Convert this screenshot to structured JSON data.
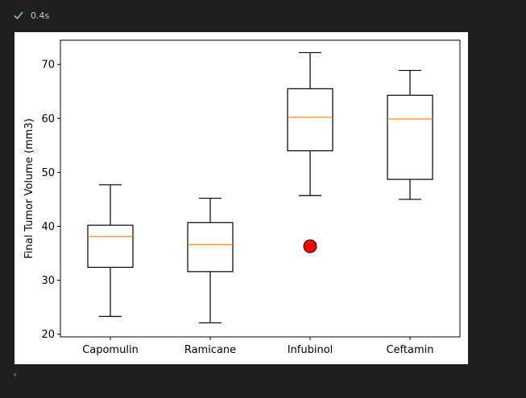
{
  "cell": {
    "status_text": "0.4s",
    "status_icon": "check-icon",
    "status_color": "#89d185"
  },
  "chart_data": {
    "type": "boxplot",
    "categories": [
      "Capomulin",
      "Ramicane",
      "Infubinol",
      "Ceftamin"
    ],
    "ylabel": "Final Tumor Volume (mm3)",
    "xlabel": "",
    "title": "",
    "ylim": [
      19.5,
      74.5
    ],
    "yticks": [
      20,
      30,
      40,
      50,
      60,
      70
    ],
    "boxes": [
      {
        "whisker_low": 23.3,
        "q1": 32.4,
        "median": 38.1,
        "q3": 40.2,
        "whisker_high": 47.7,
        "outliers": []
      },
      {
        "whisker_low": 22.1,
        "q1": 31.6,
        "median": 36.6,
        "q3": 40.7,
        "whisker_high": 45.2,
        "outliers": []
      },
      {
        "whisker_low": 45.7,
        "q1": 54.0,
        "median": 60.2,
        "q3": 65.5,
        "whisker_high": 72.2,
        "outliers": [
          36.3
        ]
      },
      {
        "whisker_low": 45.0,
        "q1": 48.7,
        "median": 59.9,
        "q3": 64.3,
        "whisker_high": 68.9,
        "outliers": []
      }
    ],
    "colors": {
      "box": "#000000",
      "median": "#ff7f0e",
      "outlier_fill": "#ff0000",
      "outlier_edge": "#000000"
    },
    "grid": false
  }
}
